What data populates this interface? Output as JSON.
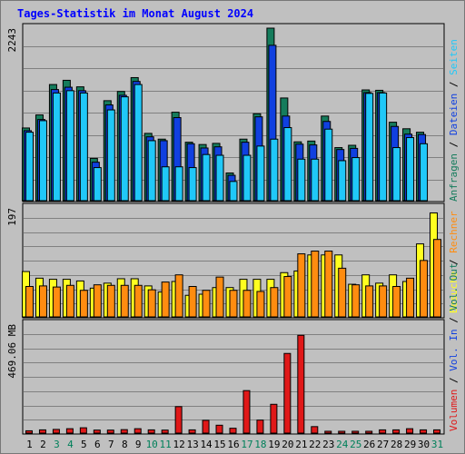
{
  "title": "Tages-Statistik im Monat August 2024",
  "colors": {
    "anfragen": "#157C5C",
    "dateien": "#1040E0",
    "seiten": "#20C8F8",
    "besuche": "#FFFF20",
    "rechner": "#FF8C10",
    "volumen": "#E01818",
    "grid": "#808080",
    "plot_bg": "#C0C0C0"
  },
  "chart_data": [
    {
      "type": "bar",
      "title": "Tages-Statistik im Monat August 2024",
      "categories": [
        "1",
        "2",
        "3",
        "4",
        "5",
        "6",
        "7",
        "8",
        "9",
        "10",
        "11",
        "12",
        "13",
        "14",
        "15",
        "16",
        "17",
        "18",
        "19",
        "20",
        "21",
        "22",
        "23",
        "24",
        "25",
        "26",
        "27",
        "28",
        "29",
        "30",
        "31"
      ],
      "weekend_days": [
        "3",
        "4",
        "10",
        "11",
        "17",
        "18",
        "24",
        "25",
        "31"
      ],
      "ymax_label": "2243",
      "ylim": [
        0,
        2243
      ],
      "right_labels": [
        "Anfragen",
        "Dateien",
        "Seiten"
      ],
      "series": [
        {
          "name": "Anfragen",
          "values": [
            945,
            1115,
            1510,
            1565,
            1480,
            550,
            1300,
            1420,
            1600,
            875,
            800,
            1150,
            760,
            730,
            745,
            360,
            800,
            1130,
            2243,
            1335,
            765,
            775,
            1100,
            690,
            720,
            1440,
            1435,
            1020,
            935,
            890,
            0
          ]
        },
        {
          "name": "Dateien",
          "values": [
            910,
            1055,
            1445,
            1475,
            1430,
            500,
            1245,
            1370,
            1550,
            830,
            780,
            1080,
            740,
            685,
            700,
            330,
            760,
            1090,
            2020,
            1100,
            735,
            725,
            1030,
            665,
            680,
            1405,
            1405,
            965,
            865,
            860,
            0
          ]
        },
        {
          "name": "Seiten",
          "values": [
            890,
            1040,
            1400,
            1430,
            1400,
            430,
            1180,
            1350,
            1510,
            780,
            440,
            440,
            430,
            600,
            590,
            250,
            590,
            710,
            800,
            950,
            540,
            540,
            930,
            520,
            560,
            1395,
            1400,
            690,
            820,
            740,
            0
          ]
        }
      ]
    },
    {
      "type": "bar",
      "ymax_label": "197",
      "ylim": [
        0,
        197
      ],
      "right_labels": [
        "Besuche",
        "Rechner"
      ],
      "series": [
        {
          "name": "Besuche",
          "values": [
            82,
            70,
            68,
            68,
            65,
            52,
            61,
            69,
            69,
            56,
            45,
            64,
            39,
            41,
            53,
            53,
            68,
            68,
            68,
            80,
            83,
            112,
            112,
            112,
            59,
            76,
            61,
            76,
            64,
            132,
            188
          ]
        },
        {
          "name": "Rechner",
          "values": [
            55,
            56,
            54,
            57,
            48,
            58,
            57,
            57,
            57,
            49,
            63,
            76,
            55,
            48,
            72,
            48,
            48,
            46,
            53,
            73,
            114,
            119,
            119,
            88,
            58,
            56,
            56,
            55,
            70,
            102,
            140
          ]
        }
      ]
    },
    {
      "type": "bar",
      "ymax_label": "469.06 MB",
      "ylim": [
        0,
        469.06
      ],
      "right_labels": [
        "Volumen",
        "Vol. In",
        "Vol. Out"
      ],
      "series": [
        {
          "name": "Volumen",
          "values": [
            10,
            14,
            16,
            19,
            23,
            13,
            13,
            15,
            19,
            14,
            13,
            114,
            14,
            55,
            34,
            21,
            183,
            56,
            124,
            343,
            421,
            28,
            8,
            8,
            8,
            8,
            14,
            14,
            19,
            14,
            14
          ]
        }
      ]
    }
  ]
}
